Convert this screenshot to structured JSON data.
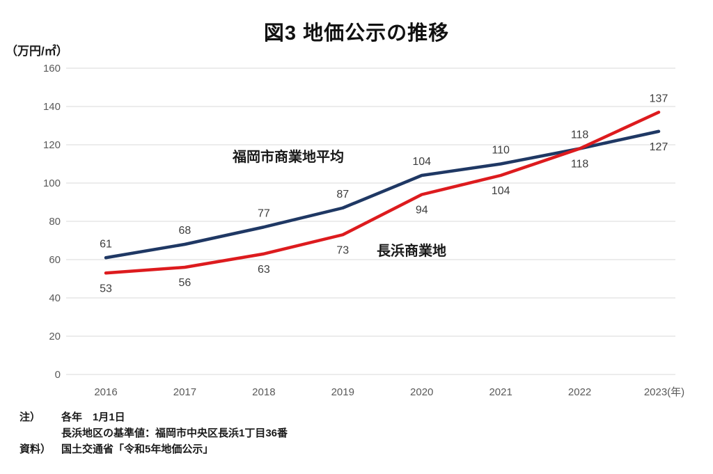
{
  "title": "図3 地価公示の推移",
  "y_axis_unit": "（万円/㎡）",
  "chart_data": {
    "type": "line",
    "x_labels": [
      "2016",
      "2017",
      "2018",
      "2019",
      "2020",
      "2021",
      "2022",
      "2023(年)"
    ],
    "y_ticks": [
      0,
      20,
      40,
      60,
      80,
      100,
      120,
      140,
      160
    ],
    "ylim": [
      0,
      160
    ],
    "grid": "horizontal-only",
    "legend_position": "inline-annotations-on-lines",
    "grid_color": "#d9d9d9",
    "tick_label_color": "#595959",
    "data_label_color": "#3d3d3d",
    "series": [
      {
        "name": "福岡市商業地平均",
        "color": "#1f3864",
        "values": [
          61,
          68,
          77,
          87,
          104,
          110,
          118,
          127
        ],
        "label_side": "above",
        "label_side_overrides": {
          "7": "below"
        }
      },
      {
        "name": "長浜商業地",
        "color": "#dd1b1e",
        "values": [
          53,
          56,
          63,
          73,
          94,
          104,
          118,
          137
        ],
        "label_side": "below",
        "label_side_overrides": {
          "7": "above"
        }
      }
    ]
  },
  "notes": [
    {
      "label": "注）",
      "text": "各年　1月1日"
    },
    {
      "label": "",
      "text": "長浜地区の基準値：福岡市中央区長浜1丁目36番"
    },
    {
      "label": "資料）",
      "text": "国土交通省「令和5年地価公示」"
    }
  ]
}
